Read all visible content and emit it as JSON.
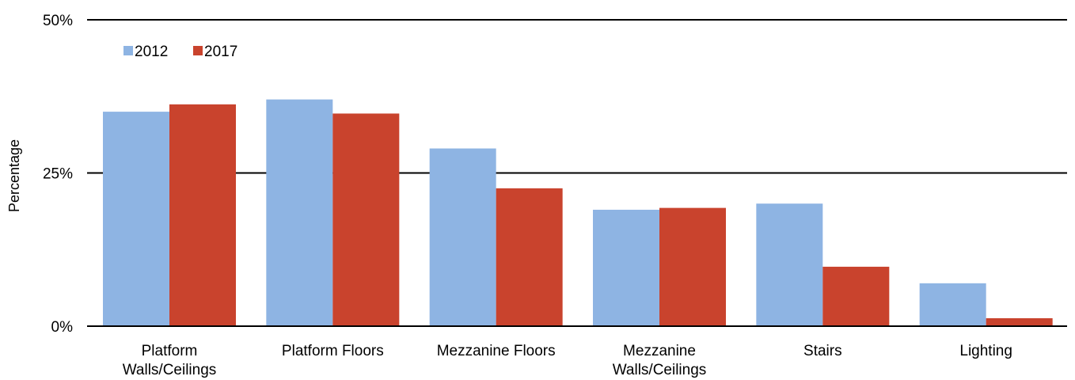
{
  "chart_data": {
    "type": "bar",
    "title": "",
    "xlabel": "",
    "ylabel": "Percentage",
    "ylim": [
      0,
      50
    ],
    "yticks": [
      0,
      25,
      50
    ],
    "ytick_labels": [
      "0%",
      "25%",
      "50%"
    ],
    "grid": true,
    "legend_position": "top-left",
    "categories": [
      [
        "Platform",
        "Walls/Ceilings"
      ],
      [
        "Platform Floors"
      ],
      [
        "Mezzanine Floors"
      ],
      [
        "Mezzanine",
        "Walls/Ceilings"
      ],
      [
        "Stairs"
      ],
      [
        "Lighting"
      ]
    ],
    "series": [
      {
        "name": "2012",
        "color": "#8eb4e3",
        "values": [
          35,
          37,
          29,
          19,
          20,
          7
        ]
      },
      {
        "name": "2017",
        "color": "#c9432d",
        "values": [
          36.2,
          34.7,
          22.5,
          19.3,
          9.7,
          1.3
        ]
      }
    ]
  }
}
